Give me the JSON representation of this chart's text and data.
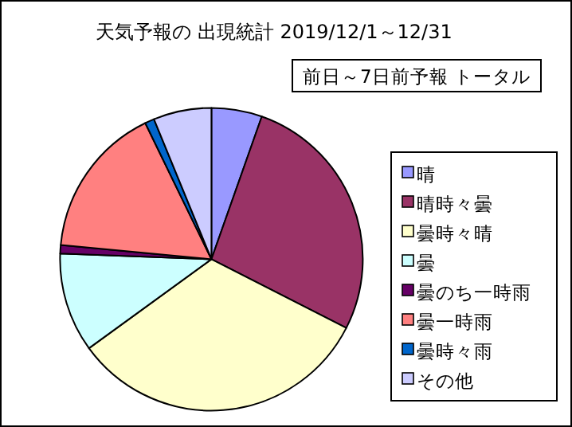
{
  "chart_data": {
    "type": "pie",
    "title": "天気予報の 出現統計 2019/12/1～12/31",
    "subtitle": "前日～7日前予報 トータル",
    "categories": [
      "晴",
      "晴時々曇",
      "曇時々晴",
      "曇",
      "曇のち一時雨",
      "曇一時雨",
      "曇時々雨",
      "その他"
    ],
    "values": [
      5.4,
      27.1,
      32.5,
      10.6,
      0.9,
      16.3,
      1.0,
      6.2
    ],
    "colors": [
      "#9999ff",
      "#993366",
      "#ffffcc",
      "#ccffff",
      "#660066",
      "#ff8080",
      "#0066cc",
      "#ccccff"
    ],
    "legend": "right"
  }
}
